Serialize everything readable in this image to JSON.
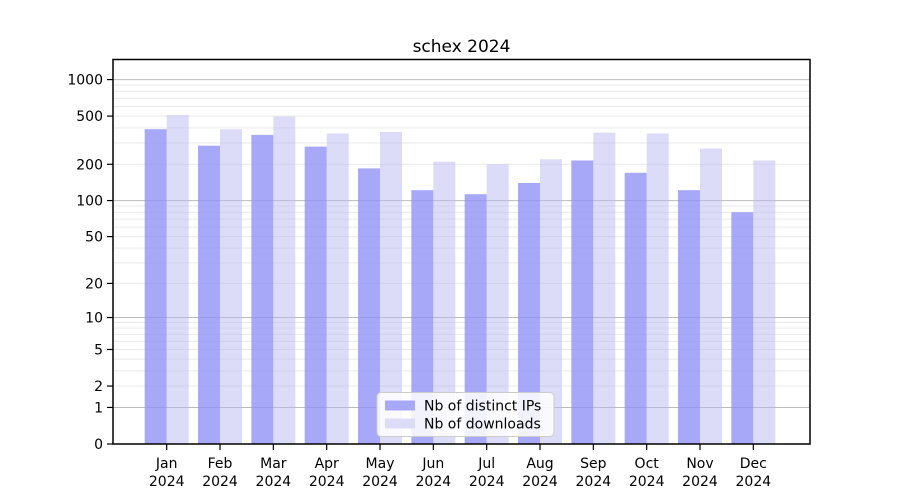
{
  "title": "schex 2024",
  "chart_data": {
    "type": "bar",
    "title": "schex 2024",
    "categories": [
      "Jan",
      "Feb",
      "Mar",
      "Apr",
      "May",
      "Jun",
      "Jul",
      "Aug",
      "Sep",
      "Oct",
      "Nov",
      "Dec"
    ],
    "x_tick_second_line": "2024",
    "series": [
      {
        "name": "Nb of distinct IPs",
        "color": "#a8a8f8",
        "fill_rgba": "rgba(146,146,246,0.8)",
        "values": [
          390,
          285,
          350,
          280,
          185,
          122,
          113,
          140,
          215,
          170,
          122,
          80
        ]
      },
      {
        "name": "Nb of downloads",
        "color": "#dcdcf8",
        "fill_rgba": "rgba(185,185,241,0.5)",
        "values": [
          510,
          390,
          495,
          360,
          370,
          210,
          200,
          220,
          365,
          360,
          270,
          215
        ]
      }
    ],
    "y_scale": "log10(value+1)",
    "y_ticks": [
      0,
      1,
      2,
      5,
      10,
      20,
      50,
      100,
      200,
      500,
      1000
    ],
    "ylim": [
      0,
      1464
    ],
    "grid": "horizontal",
    "legend_position": "lower center",
    "colors": {
      "major_gridline": "#bbbbbb",
      "minor_gridline": "#e9e9e9",
      "axis_spine": "#000000",
      "legend_border": "#cccccc",
      "legend_background": "#ffffff",
      "text": "#000000"
    }
  }
}
